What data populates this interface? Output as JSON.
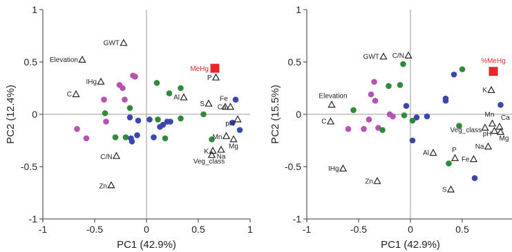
{
  "chart_data": [
    {
      "type": "scatter",
      "title": "",
      "xlabel": "PC1 (42.9%)",
      "ylabel": "PC2 (12.4%)",
      "xlim": [
        -1,
        1
      ],
      "ylim": [
        -1,
        1
      ],
      "xticks": [
        -1,
        -0.5,
        0,
        0.5,
        1
      ],
      "yticks": [
        1,
        0.5,
        0,
        -0.5,
        -1
      ],
      "xtick_labels": [
        "-1",
        "-0.5",
        "0",
        "0.5",
        "1"
      ],
      "ytick_labels": [
        "1",
        "0.5",
        "0",
        "-0.5",
        "-1"
      ],
      "grid": false,
      "reference_lines": [
        0
      ],
      "point_colors": {
        "magenta": "#b753b4",
        "green": "#2f8a3a",
        "blue": "#3a48ad"
      },
      "highlight_color": "#e8262a",
      "samples": [
        {
          "group": "magenta",
          "x": -0.67,
          "y": -0.14
        },
        {
          "group": "magenta",
          "x": -0.58,
          "y": -0.23
        },
        {
          "group": "magenta",
          "x": -0.41,
          "y": 0.14
        },
        {
          "group": "magenta",
          "x": -0.39,
          "y": -0.07
        },
        {
          "group": "magenta",
          "x": -0.26,
          "y": 0.28
        },
        {
          "group": "magenta",
          "x": -0.23,
          "y": 0.25
        },
        {
          "group": "magenta",
          "x": -0.21,
          "y": 0.14
        },
        {
          "group": "magenta",
          "x": -0.13,
          "y": 0.37
        },
        {
          "group": "magenta",
          "x": -0.11,
          "y": 0.36
        },
        {
          "group": "green",
          "x": -0.4,
          "y": 0.01
        },
        {
          "group": "green",
          "x": -0.3,
          "y": -0.22
        },
        {
          "group": "green",
          "x": -0.2,
          "y": -0.22
        },
        {
          "group": "green",
          "x": -0.16,
          "y": 0.06
        },
        {
          "group": "green",
          "x": 0.1,
          "y": 0.3
        },
        {
          "group": "green",
          "x": 0.11,
          "y": -0.05
        },
        {
          "group": "green",
          "x": 0.18,
          "y": -0.23
        },
        {
          "group": "green",
          "x": 0.22,
          "y": 0.2
        },
        {
          "group": "green",
          "x": 0.33,
          "y": 0.25
        },
        {
          "group": "green",
          "x": 0.33,
          "y": -0.04
        },
        {
          "group": "green",
          "x": 0.55,
          "y": 0.0
        },
        {
          "group": "green",
          "x": 0.63,
          "y": -0.24
        },
        {
          "group": "blue",
          "x": -0.16,
          "y": -0.03
        },
        {
          "group": "blue",
          "x": -0.15,
          "y": -0.23
        },
        {
          "group": "blue",
          "x": -0.14,
          "y": -0.26
        },
        {
          "group": "blue",
          "x": -0.09,
          "y": -0.2
        },
        {
          "group": "blue",
          "x": -0.08,
          "y": -0.06
        },
        {
          "group": "blue",
          "x": 0.03,
          "y": -0.05
        },
        {
          "group": "blue",
          "x": 0.07,
          "y": -0.22
        },
        {
          "group": "blue",
          "x": 0.13,
          "y": -0.12
        },
        {
          "group": "blue",
          "x": 0.16,
          "y": -0.1
        },
        {
          "group": "blue",
          "x": 0.2,
          "y": -0.07
        },
        {
          "group": "blue",
          "x": 0.23,
          "y": -0.07
        },
        {
          "group": "blue",
          "x": 0.83,
          "y": -0.08
        },
        {
          "group": "blue",
          "x": 0.86,
          "y": 0.14
        },
        {
          "group": "blue",
          "x": 0.9,
          "y": -0.15
        }
      ],
      "variables": [
        {
          "label": "GWT",
          "x": -0.22,
          "y": 0.68
        },
        {
          "label": "Elevation",
          "x": -0.62,
          "y": 0.52
        },
        {
          "label": "IHg",
          "x": -0.44,
          "y": 0.31
        },
        {
          "label": "C",
          "x": -0.68,
          "y": 0.19
        },
        {
          "label": "Al",
          "x": 0.36,
          "y": 0.16
        },
        {
          "label": "P",
          "x": 0.67,
          "y": 0.35
        },
        {
          "label": "S",
          "x": 0.6,
          "y": 0.1
        },
        {
          "label": "Fe",
          "x": 0.76,
          "y": 0.07
        },
        {
          "label": "Ca",
          "x": 0.81,
          "y": 0.07
        },
        {
          "label": "pH",
          "x": 0.88,
          "y": -0.05
        },
        {
          "label": "Mn",
          "x": 0.77,
          "y": -0.21
        },
        {
          "label": "Mg",
          "x": 0.84,
          "y": -0.24
        },
        {
          "label": "K",
          "x": 0.64,
          "y": -0.35
        },
        {
          "label": "Na",
          "x": 0.72,
          "y": -0.34
        },
        {
          "label": "Veg_class",
          "x": 0.63,
          "y": -0.39
        },
        {
          "label": "C/N",
          "x": -0.29,
          "y": -0.4
        },
        {
          "label": "Zn",
          "x": -0.34,
          "y": -0.68
        }
      ],
      "highlight": {
        "label": "MeHg",
        "x": 0.66,
        "y": 0.44
      }
    },
    {
      "type": "scatter",
      "title": "",
      "xlabel": "PC1 (42.9%)",
      "ylabel": "PC2 (15.5%)",
      "xlim": [
        -1,
        1
      ],
      "ylim": [
        -1,
        1
      ],
      "xticks": [
        -1,
        -0.5,
        0,
        0.5,
        1
      ],
      "yticks": [
        1,
        0.5,
        0,
        -0.5,
        -1
      ],
      "xtick_labels": [
        "-1",
        "-0.5",
        "0",
        "0.5",
        "1"
      ],
      "ytick_labels": [
        "1",
        "0.5",
        "0",
        "-0.5",
        "-1"
      ],
      "grid": false,
      "reference_lines": [
        0
      ],
      "point_colors": {
        "magenta": "#b753b4",
        "green": "#2f8a3a",
        "blue": "#3a48ad"
      },
      "highlight_color": "#e8262a",
      "samples": [
        {
          "group": "magenta",
          "x": -0.6,
          "y": -0.14
        },
        {
          "group": "magenta",
          "x": -0.45,
          "y": -0.14
        },
        {
          "group": "magenta",
          "x": -0.4,
          "y": -0.05
        },
        {
          "group": "magenta",
          "x": -0.38,
          "y": 0.19
        },
        {
          "group": "magenta",
          "x": -0.35,
          "y": 0.31
        },
        {
          "group": "magenta",
          "x": -0.34,
          "y": 0.13
        },
        {
          "group": "magenta",
          "x": -0.31,
          "y": -0.13
        },
        {
          "group": "magenta",
          "x": -0.2,
          "y": 0.0
        },
        {
          "group": "magenta",
          "x": -0.17,
          "y": -0.02
        },
        {
          "group": "green",
          "x": -0.55,
          "y": 0.04
        },
        {
          "group": "green",
          "x": -0.27,
          "y": -0.15
        },
        {
          "group": "green",
          "x": -0.21,
          "y": 0.27
        },
        {
          "group": "green",
          "x": -0.1,
          "y": 0.28
        },
        {
          "group": "green",
          "x": -0.07,
          "y": 0.48
        },
        {
          "group": "green",
          "x": -0.06,
          "y": -0.01
        },
        {
          "group": "green",
          "x": 0.02,
          "y": -0.06
        },
        {
          "group": "green",
          "x": 0.37,
          "y": -0.47
        },
        {
          "group": "green",
          "x": 0.47,
          "y": -0.11
        },
        {
          "group": "green",
          "x": 0.5,
          "y": 0.43
        },
        {
          "group": "blue",
          "x": -0.04,
          "y": 0.08
        },
        {
          "group": "blue",
          "x": 0.02,
          "y": -0.25
        },
        {
          "group": "blue",
          "x": 0.06,
          "y": -0.03
        },
        {
          "group": "blue",
          "x": 0.16,
          "y": -0.02
        },
        {
          "group": "blue",
          "x": 0.34,
          "y": 0.15
        },
        {
          "group": "blue",
          "x": 0.34,
          "y": 0.13
        },
        {
          "group": "blue",
          "x": 0.42,
          "y": 0.38
        },
        {
          "group": "blue",
          "x": 0.62,
          "y": -0.61
        },
        {
          "group": "blue",
          "x": 0.87,
          "y": 0.09
        }
      ],
      "variables": [
        {
          "label": "GWT",
          "x": -0.26,
          "y": 0.55
        },
        {
          "label": "C/N",
          "x": -0.02,
          "y": 0.56
        },
        {
          "label": "Elevation",
          "x": -0.76,
          "y": 0.09
        },
        {
          "label": "C",
          "x": -0.77,
          "y": -0.07
        },
        {
          "label": "K",
          "x": 0.78,
          "y": 0.23
        },
        {
          "label": "Mn",
          "x": 0.79,
          "y": -0.09
        },
        {
          "label": "Ca",
          "x": 0.86,
          "y": -0.12
        },
        {
          "label": "Veg_class",
          "x": 0.72,
          "y": -0.13
        },
        {
          "label": "pH",
          "x": 0.81,
          "y": -0.16
        },
        {
          "label": "Mg",
          "x": 0.87,
          "y": -0.17
        },
        {
          "label": "Na",
          "x": 0.75,
          "y": -0.31
        },
        {
          "label": "Al",
          "x": 0.22,
          "y": -0.37
        },
        {
          "label": "P",
          "x": 0.43,
          "y": -0.42
        },
        {
          "label": "Fe",
          "x": 0.61,
          "y": -0.43
        },
        {
          "label": "S",
          "x": 0.39,
          "y": -0.72
        },
        {
          "label": "IHg",
          "x": -0.65,
          "y": -0.52
        },
        {
          "label": "Zn",
          "x": -0.32,
          "y": -0.64
        }
      ],
      "highlight": {
        "label": "%MeHg",
        "x": 0.8,
        "y": 0.41
      }
    }
  ]
}
